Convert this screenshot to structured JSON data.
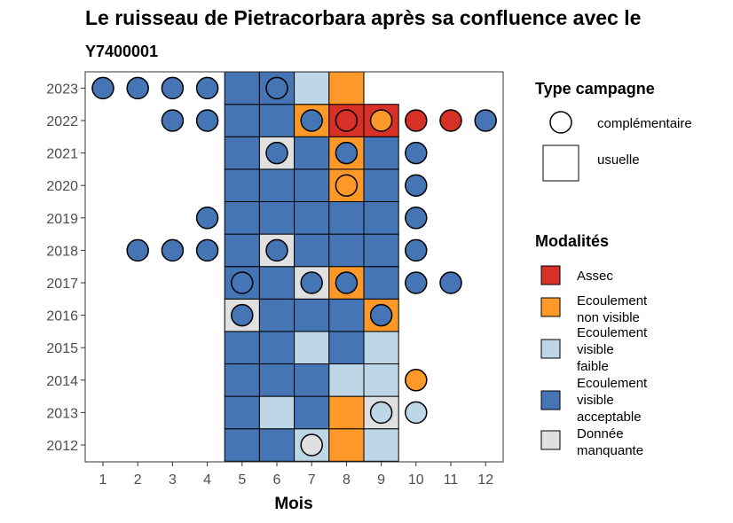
{
  "chart_data": {
    "type": "heatmap",
    "title": "Le ruisseau de Pietracorbara après sa confluence avec le",
    "subtitle": "Y7400001",
    "xlabel": "Mois",
    "ylabel": "",
    "x_ticks": [
      "1",
      "2",
      "3",
      "4",
      "5",
      "6",
      "7",
      "8",
      "9",
      "10",
      "11",
      "12"
    ],
    "y_ticks": [
      "2012",
      "2013",
      "2014",
      "2015",
      "2016",
      "2017",
      "2018",
      "2019",
      "2020",
      "2021",
      "2022",
      "2023"
    ],
    "legend_shape_title": "Type campagne",
    "legend_shapes": [
      {
        "key": "circle",
        "label": "complémentaire"
      },
      {
        "key": "square",
        "label": "usuelle"
      }
    ],
    "legend_fill_title": "Modalités",
    "legend_fills": [
      {
        "key": "assec",
        "lines": [
          "Assec"
        ]
      },
      {
        "key": "nv",
        "lines": [
          "Ecoulement",
          "non visible"
        ]
      },
      {
        "key": "faible",
        "lines": [
          "Ecoulement",
          "visible",
          "faible"
        ]
      },
      {
        "key": "acc",
        "lines": [
          "Ecoulement",
          "visible",
          "acceptable"
        ]
      },
      {
        "key": "dm",
        "lines": [
          "Donnée",
          "manquante"
        ]
      }
    ],
    "colors": {
      "assec": "#D73027",
      "nv": "#FE9929",
      "faible": "#BDD7E7",
      "acc": "#4575B4",
      "dm": "#E0E0E0"
    },
    "squares": [
      {
        "year": 2012,
        "month": 5,
        "v": "acc"
      },
      {
        "year": 2012,
        "month": 6,
        "v": "acc"
      },
      {
        "year": 2012,
        "month": 7,
        "v": "faible"
      },
      {
        "year": 2012,
        "month": 8,
        "v": "nv"
      },
      {
        "year": 2012,
        "month": 9,
        "v": "faible"
      },
      {
        "year": 2013,
        "month": 5,
        "v": "acc"
      },
      {
        "year": 2013,
        "month": 6,
        "v": "faible"
      },
      {
        "year": 2013,
        "month": 7,
        "v": "acc"
      },
      {
        "year": 2013,
        "month": 8,
        "v": "nv"
      },
      {
        "year": 2013,
        "month": 9,
        "v": "dm"
      },
      {
        "year": 2014,
        "month": 5,
        "v": "acc"
      },
      {
        "year": 2014,
        "month": 6,
        "v": "acc"
      },
      {
        "year": 2014,
        "month": 7,
        "v": "acc"
      },
      {
        "year": 2014,
        "month": 8,
        "v": "faible"
      },
      {
        "year": 2014,
        "month": 9,
        "v": "faible"
      },
      {
        "year": 2015,
        "month": 5,
        "v": "acc"
      },
      {
        "year": 2015,
        "month": 6,
        "v": "acc"
      },
      {
        "year": 2015,
        "month": 7,
        "v": "faible"
      },
      {
        "year": 2015,
        "month": 8,
        "v": "acc"
      },
      {
        "year": 2015,
        "month": 9,
        "v": "faible"
      },
      {
        "year": 2016,
        "month": 5,
        "v": "dm"
      },
      {
        "year": 2016,
        "month": 6,
        "v": "acc"
      },
      {
        "year": 2016,
        "month": 7,
        "v": "acc"
      },
      {
        "year": 2016,
        "month": 8,
        "v": "acc"
      },
      {
        "year": 2016,
        "month": 9,
        "v": "nv"
      },
      {
        "year": 2017,
        "month": 5,
        "v": "acc"
      },
      {
        "year": 2017,
        "month": 6,
        "v": "acc"
      },
      {
        "year": 2017,
        "month": 7,
        "v": "dm"
      },
      {
        "year": 2017,
        "month": 8,
        "v": "nv"
      },
      {
        "year": 2017,
        "month": 9,
        "v": "acc"
      },
      {
        "year": 2018,
        "month": 5,
        "v": "acc"
      },
      {
        "year": 2018,
        "month": 6,
        "v": "dm"
      },
      {
        "year": 2018,
        "month": 7,
        "v": "acc"
      },
      {
        "year": 2018,
        "month": 8,
        "v": "acc"
      },
      {
        "year": 2018,
        "month": 9,
        "v": "acc"
      },
      {
        "year": 2019,
        "month": 5,
        "v": "acc"
      },
      {
        "year": 2019,
        "month": 6,
        "v": "acc"
      },
      {
        "year": 2019,
        "month": 7,
        "v": "acc"
      },
      {
        "year": 2019,
        "month": 8,
        "v": "acc"
      },
      {
        "year": 2019,
        "month": 9,
        "v": "acc"
      },
      {
        "year": 2020,
        "month": 5,
        "v": "acc"
      },
      {
        "year": 2020,
        "month": 6,
        "v": "acc"
      },
      {
        "year": 2020,
        "month": 7,
        "v": "acc"
      },
      {
        "year": 2020,
        "month": 8,
        "v": "nv"
      },
      {
        "year": 2020,
        "month": 9,
        "v": "acc"
      },
      {
        "year": 2021,
        "month": 5,
        "v": "acc"
      },
      {
        "year": 2021,
        "month": 6,
        "v": "dm"
      },
      {
        "year": 2021,
        "month": 7,
        "v": "acc"
      },
      {
        "year": 2021,
        "month": 8,
        "v": "nv"
      },
      {
        "year": 2021,
        "month": 9,
        "v": "acc"
      },
      {
        "year": 2022,
        "month": 5,
        "v": "acc"
      },
      {
        "year": 2022,
        "month": 6,
        "v": "acc"
      },
      {
        "year": 2022,
        "month": 7,
        "v": "nv"
      },
      {
        "year": 2022,
        "month": 8,
        "v": "assec"
      },
      {
        "year": 2022,
        "month": 9,
        "v": "assec"
      },
      {
        "year": 2023,
        "month": 5,
        "v": "acc"
      },
      {
        "year": 2023,
        "month": 6,
        "v": "acc"
      },
      {
        "year": 2023,
        "month": 7,
        "v": "faible"
      },
      {
        "year": 2023,
        "month": 8,
        "v": "nv"
      }
    ],
    "circles": [
      {
        "year": 2012,
        "month": 7,
        "v": "dm"
      },
      {
        "year": 2013,
        "month": 9,
        "v": "faible"
      },
      {
        "year": 2013,
        "month": 10,
        "v": "faible"
      },
      {
        "year": 2014,
        "month": 10,
        "v": "nv"
      },
      {
        "year": 2016,
        "month": 5,
        "v": "acc"
      },
      {
        "year": 2016,
        "month": 9,
        "v": "acc"
      },
      {
        "year": 2017,
        "month": 5,
        "v": "acc"
      },
      {
        "year": 2017,
        "month": 7,
        "v": "acc"
      },
      {
        "year": 2017,
        "month": 8,
        "v": "acc"
      },
      {
        "year": 2017,
        "month": 10,
        "v": "acc"
      },
      {
        "year": 2017,
        "month": 11,
        "v": "acc"
      },
      {
        "year": 2018,
        "month": 2,
        "v": "acc"
      },
      {
        "year": 2018,
        "month": 3,
        "v": "acc"
      },
      {
        "year": 2018,
        "month": 4,
        "v": "acc"
      },
      {
        "year": 2018,
        "month": 6,
        "v": "acc"
      },
      {
        "year": 2018,
        "month": 10,
        "v": "acc"
      },
      {
        "year": 2019,
        "month": 4,
        "v": "acc"
      },
      {
        "year": 2019,
        "month": 10,
        "v": "acc"
      },
      {
        "year": 2020,
        "month": 8,
        "v": "nv"
      },
      {
        "year": 2020,
        "month": 10,
        "v": "acc"
      },
      {
        "year": 2021,
        "month": 6,
        "v": "acc"
      },
      {
        "year": 2021,
        "month": 8,
        "v": "acc"
      },
      {
        "year": 2021,
        "month": 10,
        "v": "acc"
      },
      {
        "year": 2022,
        "month": 3,
        "v": "acc"
      },
      {
        "year": 2022,
        "month": 4,
        "v": "acc"
      },
      {
        "year": 2022,
        "month": 7,
        "v": "acc"
      },
      {
        "year": 2022,
        "month": 8,
        "v": "assec"
      },
      {
        "year": 2022,
        "month": 9,
        "v": "nv"
      },
      {
        "year": 2022,
        "month": 10,
        "v": "assec"
      },
      {
        "year": 2022,
        "month": 11,
        "v": "assec"
      },
      {
        "year": 2022,
        "month": 12,
        "v": "acc"
      },
      {
        "year": 2023,
        "month": 1,
        "v": "acc"
      },
      {
        "year": 2023,
        "month": 2,
        "v": "acc"
      },
      {
        "year": 2023,
        "month": 3,
        "v": "acc"
      },
      {
        "year": 2023,
        "month": 4,
        "v": "acc"
      },
      {
        "year": 2023,
        "month": 6,
        "v": "acc"
      }
    ]
  }
}
